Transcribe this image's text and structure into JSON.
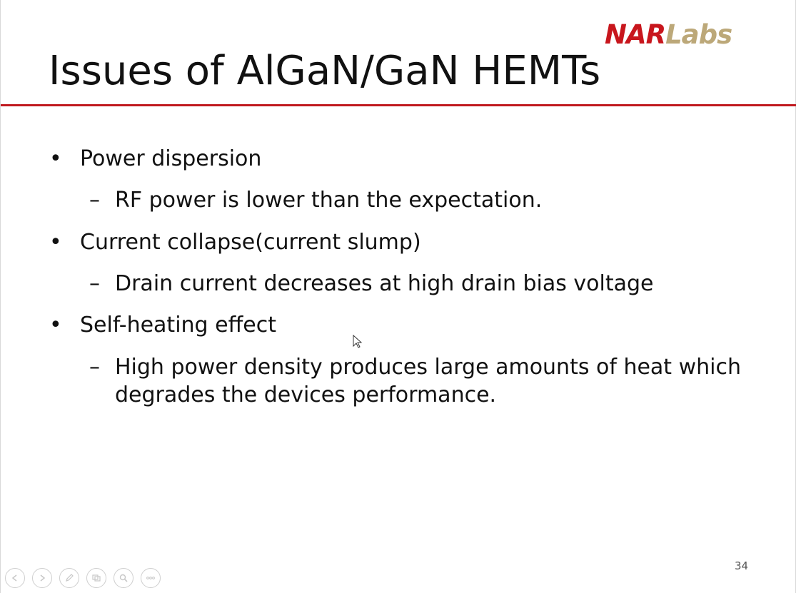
{
  "logo": {
    "part1": "NAR",
    "part2": "Labs",
    "color1": "#c8161d",
    "color2": "#bca879"
  },
  "title": "Issues of AlGaN/GaN HEMTs",
  "accent_rule_color": "#c0191f",
  "bullets": [
    {
      "text": "Power dispersion",
      "sub": "RF power is lower than the expectation."
    },
    {
      "text": "Current collapse(current slump)",
      "sub": "Drain current decreases at high drain bias voltage"
    },
    {
      "text": "Self-heating effect",
      "sub": "High power density produces large amounts of heat which degrades the devices performance."
    }
  ],
  "bullet_glyph": "•",
  "dash_glyph": "–",
  "page_number": "34",
  "nav_controls": [
    {
      "name": "previous-slide",
      "icon": "arrow-left-icon"
    },
    {
      "name": "next-slide",
      "icon": "arrow-right-icon"
    },
    {
      "name": "pen-tool",
      "icon": "pen-icon"
    },
    {
      "name": "see-all-slides",
      "icon": "slides-icon"
    },
    {
      "name": "zoom",
      "icon": "magnifier-icon"
    },
    {
      "name": "more-options",
      "icon": "more-icon"
    }
  ]
}
